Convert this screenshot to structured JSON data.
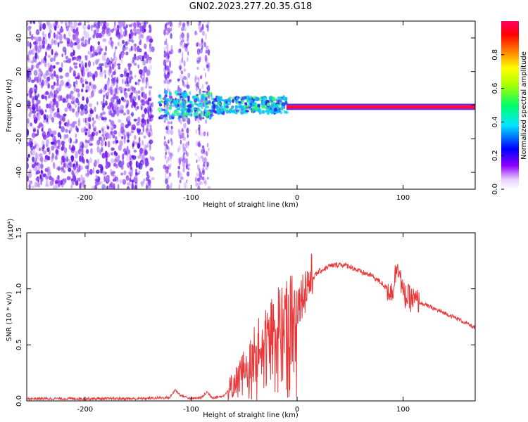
{
  "figure": {
    "title": "GN02.2023.277.20.35.G18"
  },
  "chart_data": [
    {
      "type": "heatmap",
      "xlabel": "Height of straight line (km)",
      "ylabel": "Frequency (Hz)",
      "xlim": [
        -255,
        168
      ],
      "ylim": [
        -50,
        50
      ],
      "xticks": [
        -200,
        -100,
        0,
        100
      ],
      "yticks": [
        -40,
        -20,
        0,
        20,
        40
      ],
      "colorbar": {
        "label": "Normalized spectral amplitude",
        "range": [
          0,
          1
        ],
        "ticks": [
          "0.0",
          "0.2",
          "0.4",
          "0.6",
          "0.8"
        ],
        "colormap": "rainbow (white-violet-blue-cyan-green-yellow-red-magenta)"
      },
      "features": [
        {
          "x_range": [
            -255,
            -136
          ],
          "pattern": "broadband low-amplitude noise across all frequencies"
        },
        {
          "x_range": [
            -128,
            -82
          ],
          "pattern": "intermittent broadband noise bands"
        },
        {
          "x_range": [
            -130,
            -80
          ],
          "freq_center_hz": 0,
          "freq_width_hz": 10,
          "amplitude": "0.3-0.6"
        },
        {
          "x_range": [
            -80,
            -10
          ],
          "freq_center_hz": 0,
          "freq_width_hz": 6,
          "amplitude": "0.4-0.8"
        },
        {
          "x_range": [
            -10,
            168
          ],
          "freq_center_hz": -1,
          "freq_width_hz": 2,
          "amplitude": "0.9-1.0"
        }
      ]
    },
    {
      "type": "line",
      "xlabel": "Height of straight line (km)",
      "ylabel": "SNR (10 * v/v)",
      "y_multiplier": "(x10⁴)",
      "xlim": [
        -255,
        168
      ],
      "ylim": [
        0,
        1.5
      ],
      "xticks": [
        -200,
        -100,
        0,
        100
      ],
      "yticks": [
        "0.0",
        "0.5",
        "1.0",
        "1.5"
      ],
      "series": [
        {
          "color": "#e8383a",
          "x": [
            -255,
            -200,
            -150,
            -120,
            -115,
            -110,
            -100,
            -90,
            -85,
            -80,
            -70,
            -60,
            -50,
            -40,
            -30,
            -20,
            -10,
            0,
            10,
            20,
            30,
            40,
            50,
            60,
            70,
            80,
            85,
            90,
            95,
            100,
            105,
            110,
            120,
            130,
            140,
            150,
            160,
            168
          ],
          "y": [
            0.02,
            0.02,
            0.02,
            0.03,
            0.1,
            0.05,
            0.02,
            0.03,
            0.08,
            0.03,
            0.04,
            0.15,
            0.3,
            0.45,
            0.6,
            0.7,
            0.75,
            0.85,
            1.05,
            1.15,
            1.2,
            1.22,
            1.2,
            1.15,
            1.12,
            1.05,
            1.0,
            0.98,
            1.25,
            0.95,
            0.92,
            0.9,
            0.86,
            0.82,
            0.78,
            0.74,
            0.69,
            0.65
          ]
        }
      ]
    }
  ]
}
